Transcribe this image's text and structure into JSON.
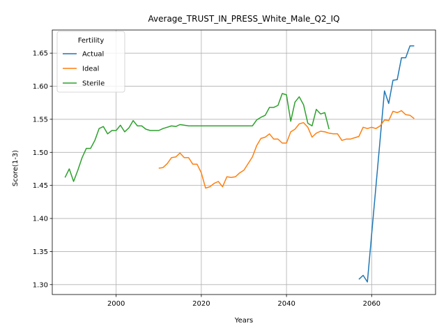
{
  "chart_data": {
    "type": "line",
    "title": "Average_TRUST_IN_PRESS_White_Male_Q2_IQ",
    "xlabel": "Years",
    "ylabel": "Score(1-3)",
    "xlim": [
      1985,
      2075
    ],
    "ylim": [
      1.285,
      1.685
    ],
    "xticks": [
      2000,
      2020,
      2040,
      2060
    ],
    "yticks": [
      1.3,
      1.35,
      1.4,
      1.45,
      1.5,
      1.55,
      1.6,
      1.65
    ],
    "xtick_labels": [
      "2000",
      "2020",
      "2040",
      "2060"
    ],
    "ytick_labels": [
      "1.30",
      "1.35",
      "1.40",
      "1.45",
      "1.50",
      "1.55",
      "1.60",
      "1.65"
    ],
    "grid": true,
    "legend": {
      "title": "Fertility",
      "placement": "top-left"
    },
    "series": [
      {
        "name": "Actual",
        "color": "#1f77b4",
        "x": [
          2057,
          2058,
          2059,
          2063,
          2064,
          2065,
          2066,
          2067,
          2068,
          2069,
          2070
        ],
        "y": [
          1.308,
          1.314,
          1.304,
          1.593,
          1.574,
          1.609,
          1.61,
          1.643,
          1.643,
          1.661,
          1.661
        ]
      },
      {
        "name": "Ideal",
        "color": "#ff7f0e",
        "x": [
          2010,
          2011,
          2012,
          2013,
          2014,
          2015,
          2016,
          2017,
          2018,
          2019,
          2020,
          2021,
          2022,
          2023,
          2024,
          2025,
          2026,
          2027,
          2028,
          2029,
          2030,
          2031,
          2032,
          2033,
          2034,
          2035,
          2036,
          2037,
          2038,
          2039,
          2040,
          2041,
          2042,
          2043,
          2044,
          2045,
          2046,
          2047,
          2048,
          2049,
          2050,
          2051,
          2052,
          2053,
          2054,
          2055,
          2056,
          2057,
          2058,
          2059,
          2060,
          2061,
          2062,
          2063,
          2064,
          2065,
          2066,
          2067,
          2068,
          2069,
          2070
        ],
        "y": [
          1.476,
          1.477,
          1.483,
          1.492,
          1.493,
          1.499,
          1.492,
          1.492,
          1.482,
          1.482,
          1.469,
          1.446,
          1.448,
          1.453,
          1.456,
          1.448,
          1.463,
          1.462,
          1.463,
          1.469,
          1.473,
          1.483,
          1.493,
          1.51,
          1.521,
          1.523,
          1.528,
          1.52,
          1.52,
          1.514,
          1.514,
          1.531,
          1.535,
          1.543,
          1.545,
          1.538,
          1.523,
          1.529,
          1.532,
          1.531,
          1.529,
          1.528,
          1.528,
          1.518,
          1.52,
          1.52,
          1.522,
          1.524,
          1.538,
          1.536,
          1.538,
          1.536,
          1.54,
          1.549,
          1.548,
          1.562,
          1.56,
          1.563,
          1.557,
          1.556,
          1.551
        ]
      },
      {
        "name": "Sterile",
        "color": "#2ca02c",
        "x": [
          1988,
          1989,
          1990,
          1991,
          1992,
          1993,
          1994,
          1995,
          1996,
          1997,
          1998,
          1999,
          2000,
          2001,
          2002,
          2003,
          2004,
          2005,
          2006,
          2007,
          2008,
          2009,
          2010,
          2011,
          2012,
          2013,
          2014,
          2015,
          2016,
          2017,
          2018,
          2019,
          2020,
          2021,
          2022,
          2023,
          2024,
          2025,
          2026,
          2027,
          2028,
          2029,
          2030,
          2031,
          2032,
          2033,
          2034,
          2035,
          2036,
          2037,
          2038,
          2039,
          2040,
          2041,
          2042,
          2043,
          2044,
          2045,
          2046,
          2047,
          2048,
          2049,
          2050
        ],
        "y": [
          1.462,
          1.475,
          1.456,
          1.473,
          1.492,
          1.506,
          1.506,
          1.518,
          1.536,
          1.539,
          1.528,
          1.533,
          1.533,
          1.541,
          1.531,
          1.537,
          1.548,
          1.54,
          1.54,
          1.535,
          1.533,
          1.533,
          1.533,
          1.536,
          1.538,
          1.54,
          1.539,
          1.542,
          1.541,
          1.54,
          1.54,
          1.54,
          1.54,
          1.54,
          1.54,
          1.54,
          1.54,
          1.54,
          1.54,
          1.54,
          1.54,
          1.54,
          1.54,
          1.54,
          1.54,
          1.549,
          1.553,
          1.556,
          1.568,
          1.568,
          1.571,
          1.589,
          1.587,
          1.547,
          1.576,
          1.584,
          1.572,
          1.544,
          1.54,
          1.565,
          1.558,
          1.56,
          1.535
        ]
      }
    ]
  }
}
